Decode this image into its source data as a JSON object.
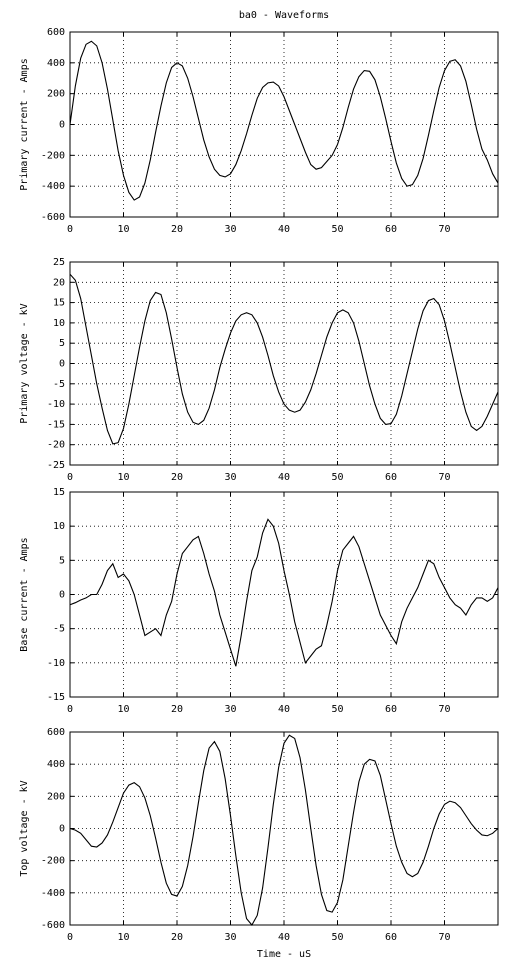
{
  "chart_data": [
    {
      "type": "line",
      "title": "ba0 - Waveforms",
      "ylabel": "Primary current - Amps",
      "color": "#000000",
      "grid": true,
      "xlim": [
        0,
        80
      ],
      "xticks": [
        0,
        10,
        20,
        30,
        40,
        50,
        60,
        70
      ],
      "ylim": [
        -600,
        600
      ],
      "yticks": [
        -600,
        -400,
        -200,
        0,
        200,
        400,
        600
      ],
      "x": [
        0,
        1,
        2,
        3,
        4,
        5,
        6,
        7,
        8,
        9,
        10,
        11,
        12,
        13,
        14,
        15,
        16,
        17,
        18,
        19,
        20,
        21,
        22,
        23,
        24,
        25,
        26,
        27,
        28,
        29,
        30,
        31,
        32,
        33,
        34,
        35,
        36,
        37,
        38,
        39,
        40,
        41,
        42,
        43,
        44,
        45,
        46,
        47,
        48,
        49,
        50,
        51,
        52,
        53,
        54,
        55,
        56,
        57,
        58,
        59,
        60,
        61,
        62,
        63,
        64,
        65,
        66,
        67,
        68,
        69,
        70,
        71,
        72,
        73,
        74,
        75,
        76,
        77,
        78,
        79,
        80
      ],
      "values": [
        0,
        250,
        430,
        520,
        540,
        510,
        400,
        230,
        30,
        -170,
        -330,
        -440,
        -490,
        -470,
        -380,
        -230,
        -50,
        120,
        270,
        370,
        400,
        380,
        300,
        180,
        40,
        -100,
        -210,
        -290,
        -330,
        -340,
        -320,
        -260,
        -170,
        -60,
        60,
        170,
        240,
        270,
        275,
        250,
        180,
        90,
        0,
        -90,
        -180,
        -260,
        -290,
        -280,
        -240,
        -200,
        -130,
        -20,
        110,
        230,
        310,
        350,
        345,
        290,
        180,
        40,
        -110,
        -250,
        -350,
        -400,
        -390,
        -330,
        -220,
        -70,
        90,
        240,
        350,
        410,
        420,
        380,
        280,
        130,
        -30,
        -160,
        -230,
        -320,
        -380
      ]
    },
    {
      "type": "line",
      "ylabel": "Primary voltage - kV",
      "color": "#000000",
      "grid": true,
      "xlim": [
        0,
        80
      ],
      "xticks": [
        0,
        10,
        20,
        30,
        40,
        50,
        60,
        70
      ],
      "ylim": [
        -25,
        25
      ],
      "yticks": [
        -25,
        -20,
        -15,
        -10,
        -5,
        0,
        5,
        10,
        15,
        20,
        25
      ],
      "x": [
        0,
        1,
        2,
        3,
        4,
        5,
        6,
        7,
        8,
        9,
        10,
        11,
        12,
        13,
        14,
        15,
        16,
        17,
        18,
        19,
        20,
        21,
        22,
        23,
        24,
        25,
        26,
        27,
        28,
        29,
        30,
        31,
        32,
        33,
        34,
        35,
        36,
        37,
        38,
        39,
        40,
        41,
        42,
        43,
        44,
        45,
        46,
        47,
        48,
        49,
        50,
        51,
        52,
        53,
        54,
        55,
        56,
        57,
        58,
        59,
        60,
        61,
        62,
        63,
        64,
        65,
        66,
        67,
        68,
        69,
        70,
        71,
        72,
        73,
        74,
        75,
        76,
        77,
        78,
        79,
        80
      ],
      "values": [
        22,
        20.5,
        16,
        9,
        2,
        -5,
        -11,
        -16.5,
        -19.8,
        -19.5,
        -16,
        -10,
        -3,
        4,
        10.5,
        15.5,
        17.5,
        17,
        12.5,
        6,
        -1,
        -7.5,
        -12,
        -14.5,
        -15,
        -14,
        -11,
        -6.5,
        -1,
        3.5,
        7.5,
        10.5,
        12,
        12.5,
        12,
        10,
        6.5,
        2,
        -3,
        -7,
        -10,
        -11.5,
        -12,
        -11.5,
        -9.5,
        -6.5,
        -2.5,
        2,
        6.5,
        10,
        12.5,
        13.2,
        12.5,
        10,
        5.5,
        0,
        -5.5,
        -10,
        -13.5,
        -15,
        -14.8,
        -12.5,
        -8,
        -2.5,
        3,
        8.5,
        13,
        15.5,
        16,
        14.5,
        10.5,
        5,
        -1,
        -7,
        -12,
        -15.5,
        -16.5,
        -15.5,
        -13,
        -10,
        -7
      ]
    },
    {
      "type": "line",
      "ylabel": "Base current - Amps",
      "color": "#000000",
      "grid": true,
      "xlim": [
        0,
        80
      ],
      "xticks": [
        0,
        10,
        20,
        30,
        40,
        50,
        60,
        70
      ],
      "ylim": [
        -15,
        15
      ],
      "yticks": [
        -15,
        -10,
        -5,
        0,
        5,
        10,
        15
      ],
      "x": [
        0,
        1,
        2,
        3,
        4,
        5,
        6,
        7,
        8,
        9,
        10,
        11,
        12,
        13,
        14,
        15,
        16,
        17,
        18,
        19,
        20,
        21,
        22,
        23,
        24,
        25,
        26,
        27,
        28,
        29,
        30,
        31,
        32,
        33,
        34,
        35,
        36,
        37,
        38,
        39,
        40,
        41,
        42,
        43,
        44,
        45,
        46,
        47,
        48,
        49,
        50,
        51,
        52,
        53,
        54,
        55,
        56,
        57,
        58,
        59,
        60,
        61,
        62,
        63,
        64,
        65,
        66,
        67,
        68,
        69,
        70,
        71,
        72,
        73,
        74,
        75,
        76,
        77,
        78,
        79,
        80
      ],
      "values": [
        -1.5,
        -1.2,
        -0.8,
        -0.5,
        0,
        0,
        1.5,
        3.5,
        4.5,
        2.5,
        3,
        2,
        0,
        -3,
        -6,
        -5.5,
        -5,
        -6,
        -3,
        -1,
        3,
        6,
        7,
        8,
        8.5,
        6,
        3,
        0.5,
        -3,
        -5.5,
        -8,
        -10.5,
        -6,
        -1,
        3.5,
        5.5,
        9,
        11,
        10,
        7.5,
        3.5,
        0,
        -4,
        -7,
        -10,
        -9,
        -8,
        -7.5,
        -4.5,
        -1,
        3.5,
        6.5,
        7.5,
        8.5,
        7,
        4.5,
        2,
        -0.5,
        -3,
        -4.5,
        -6,
        -7.2,
        -4,
        -2,
        -0.5,
        1,
        3,
        5,
        4.5,
        2.5,
        1,
        -0.5,
        -1.5,
        -2,
        -3,
        -1.5,
        -0.5,
        -0.5,
        -1,
        -0.5,
        1
      ]
    },
    {
      "type": "line",
      "ylabel": "Top voltage - kV",
      "xlabel": "Time - uS",
      "color": "#000000",
      "grid": true,
      "xlim": [
        0,
        80
      ],
      "xticks": [
        0,
        10,
        20,
        30,
        40,
        50,
        60,
        70
      ],
      "ylim": [
        -600,
        600
      ],
      "yticks": [
        -600,
        -400,
        -200,
        0,
        200,
        400,
        600
      ],
      "x": [
        0,
        1,
        2,
        3,
        4,
        5,
        6,
        7,
        8,
        9,
        10,
        11,
        12,
        13,
        14,
        15,
        16,
        17,
        18,
        19,
        20,
        21,
        22,
        23,
        24,
        25,
        26,
        27,
        28,
        29,
        30,
        31,
        32,
        33,
        34,
        35,
        36,
        37,
        38,
        39,
        40,
        41,
        42,
        43,
        44,
        45,
        46,
        47,
        48,
        49,
        50,
        51,
        52,
        53,
        54,
        55,
        56,
        57,
        58,
        59,
        60,
        61,
        62,
        63,
        64,
        65,
        66,
        67,
        68,
        69,
        70,
        71,
        72,
        73,
        74,
        75,
        76,
        77,
        78,
        79,
        80
      ],
      "values": [
        0,
        -10,
        -30,
        -70,
        -110,
        -115,
        -90,
        -40,
        40,
        130,
        220,
        270,
        285,
        260,
        190,
        80,
        -60,
        -210,
        -340,
        -410,
        -420,
        -360,
        -230,
        -50,
        160,
        360,
        500,
        540,
        480,
        310,
        80,
        -170,
        -400,
        -560,
        -600,
        -540,
        -370,
        -120,
        150,
        380,
        530,
        580,
        560,
        440,
        240,
        0,
        -230,
        -410,
        -510,
        -520,
        -460,
        -320,
        -110,
        100,
        290,
        400,
        430,
        420,
        330,
        180,
        30,
        -110,
        -210,
        -280,
        -300,
        -280,
        -210,
        -110,
        0,
        90,
        150,
        170,
        160,
        130,
        80,
        30,
        -10,
        -40,
        -45,
        -30,
        0
      ]
    }
  ]
}
